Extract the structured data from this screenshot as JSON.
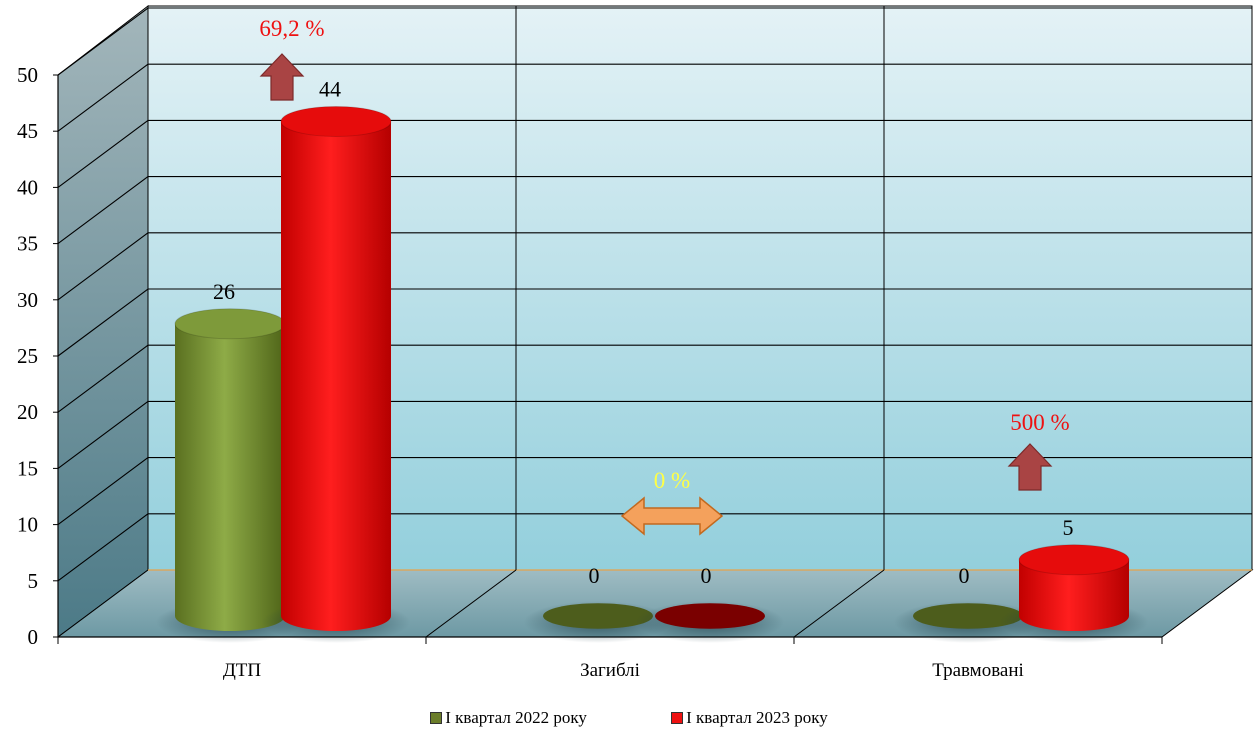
{
  "chart_data": {
    "type": "bar",
    "categories": [
      "ДТП",
      "Загиблі",
      "Травмовані"
    ],
    "series": [
      {
        "name": "І квартал 2022 року",
        "values": [
          26,
          0,
          0
        ],
        "labels": [
          "26",
          "0",
          "0"
        ],
        "color": "#7a9a3a"
      },
      {
        "name": "І квартал 2023 року",
        "values": [
          44,
          0,
          5
        ],
        "labels": [
          "44",
          "0",
          "5"
        ],
        "color": "#ee1111"
      }
    ],
    "ylim": [
      0,
      50
    ],
    "yticks": [
      0,
      5,
      10,
      15,
      20,
      25,
      30,
      35,
      40,
      45,
      50
    ],
    "ytick_labels": [
      "0",
      "5",
      "10",
      "15",
      "20",
      "25",
      "30",
      "35",
      "40",
      "45",
      "50"
    ],
    "grid": true,
    "legend_position": "bottom",
    "annotations": [
      {
        "text": "69,2 %",
        "category": 0,
        "arrow": "up",
        "color": "#ee1111"
      },
      {
        "text": "0 %",
        "category": 1,
        "arrow": "left-right",
        "color": "#ffff44"
      },
      {
        "text": "500 %",
        "category": 2,
        "arrow": "up",
        "color": "#ee1111"
      }
    ],
    "colors": {
      "wall": "#bfe3ec",
      "side_wall": "#5f8a97",
      "floor": "#7fa7b1",
      "grid": "#000000",
      "arrow_red": "#a94444",
      "arrow_orange": "#f4a15c"
    }
  }
}
